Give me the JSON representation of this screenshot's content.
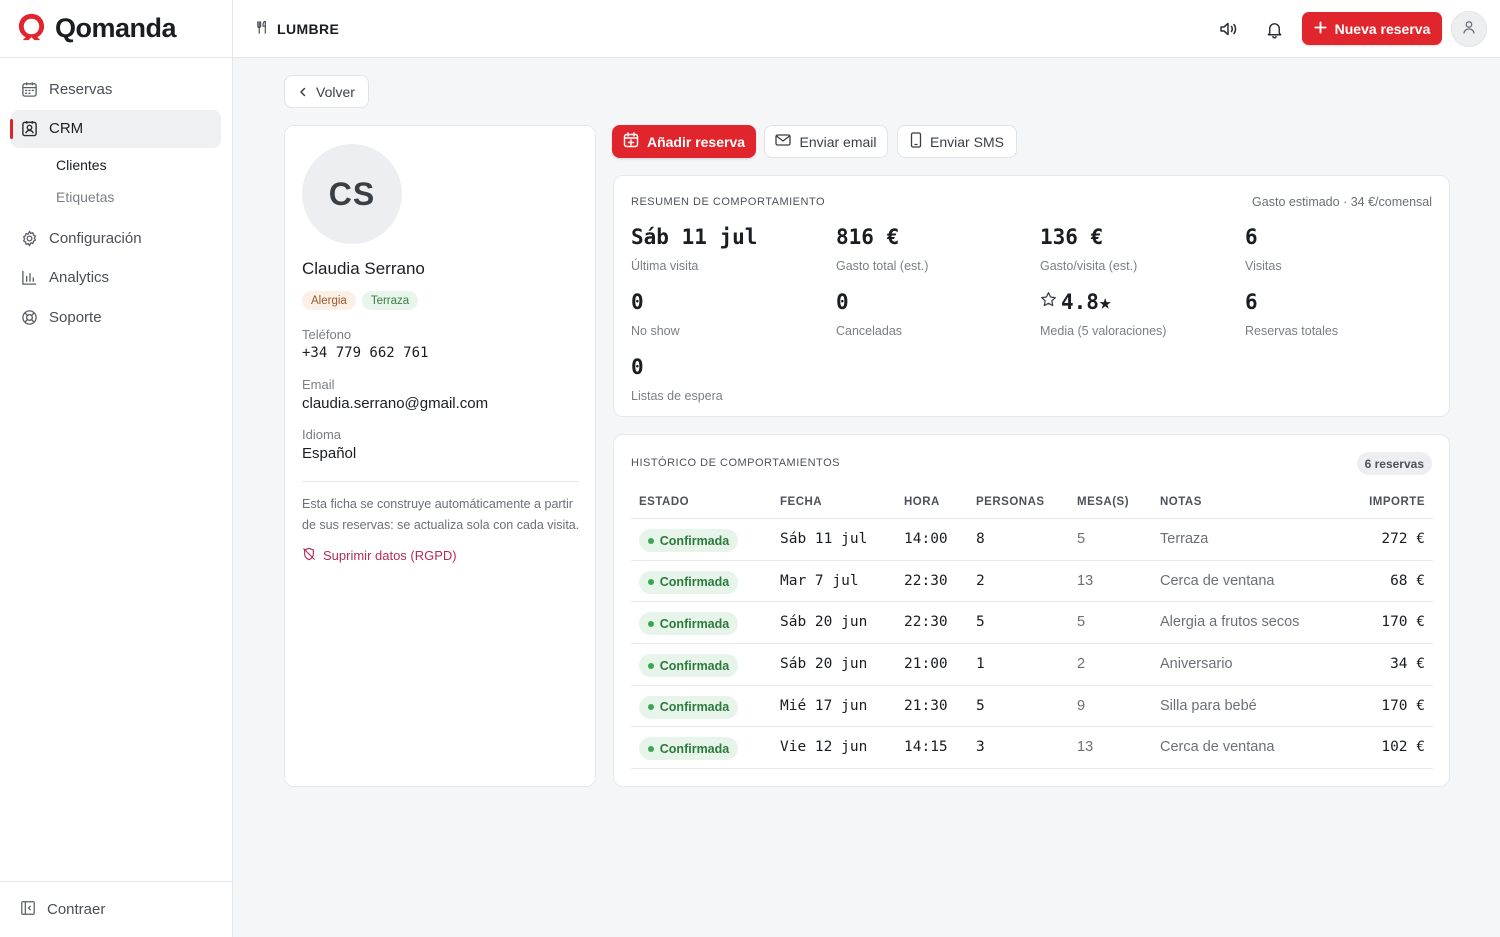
{
  "brand": {
    "name": "Qomanda"
  },
  "sidebar": {
    "items": [
      {
        "label": "Reservas",
        "icon": "calendar-icon"
      },
      {
        "label": "CRM",
        "icon": "contact-card-icon"
      },
      {
        "label": "Configuración",
        "icon": "gear-icon"
      },
      {
        "label": "Analytics",
        "icon": "bar-chart-icon"
      },
      {
        "label": "Soporte",
        "icon": "lifebuoy-icon"
      }
    ],
    "crm_sub": [
      "Clientes",
      "Etiquetas"
    ],
    "collapse_label": "Contraer"
  },
  "topbar": {
    "venue": "LUMBRE",
    "new_booking": "Nueva reserva"
  },
  "back_label": "Volver",
  "profile": {
    "initials": "CS",
    "name": "Claudia Serrano",
    "tags": [
      "Alergia",
      "Terraza"
    ],
    "phone_label": "Teléfono",
    "phone": "+34 779 662 761",
    "email_label": "Email",
    "email": "claudia.serrano@gmail.com",
    "language_label": "Idioma",
    "language": "Español",
    "note": "Esta ficha se construye automáticamente a partir de sus reservas: se actualiza sola con cada visita.",
    "gdpr": "Suprimir datos (RGPD)"
  },
  "actions": {
    "add": "Añadir reserva",
    "email": "Enviar email",
    "sms": "Enviar SMS"
  },
  "summary": {
    "title": "RESUMEN DE COMPORTAMIENTO",
    "estimate": "Gasto estimado · 34  €/comensal",
    "stats": [
      {
        "value": "Sáb 11 jul",
        "label": "Última visita"
      },
      {
        "value": "816 €",
        "label": "Gasto total (est.)"
      },
      {
        "value": "136 €",
        "label": "Gasto/visita (est.)"
      },
      {
        "value": "6",
        "label": "Visitas"
      },
      {
        "value": "0",
        "label": "No show"
      },
      {
        "value": "0",
        "label": "Canceladas"
      },
      {
        "value": "4.8★",
        "label": "Media (5 valoraciones)"
      },
      {
        "value": "6",
        "label": "Reservas totales"
      },
      {
        "value": "0",
        "label": "Listas de espera"
      }
    ]
  },
  "history": {
    "title": "HISTÓRICO DE COMPORTAMIENTOS",
    "count": "6 reservas",
    "columns": [
      "ESTADO",
      "FECHA",
      "HORA",
      "PERSONAS",
      "MESA(S)",
      "NOTAS",
      "IMPORTE"
    ],
    "rows": [
      {
        "estado": "Confirmada",
        "fecha": "Sáb 11 jul",
        "hora": "14:00",
        "personas": "8",
        "mesa": "5",
        "notas": "Terraza",
        "importe": "272 €"
      },
      {
        "estado": "Confirmada",
        "fecha": "Mar 7 jul",
        "hora": "22:30",
        "personas": "2",
        "mesa": "13",
        "notas": "Cerca de ventana",
        "importe": "68 €"
      },
      {
        "estado": "Confirmada",
        "fecha": "Sáb 20 jun",
        "hora": "22:30",
        "personas": "5",
        "mesa": "5",
        "notas": "Alergia a frutos secos",
        "importe": "170 €"
      },
      {
        "estado": "Confirmada",
        "fecha": "Sáb 20 jun",
        "hora": "21:00",
        "personas": "1",
        "mesa": "2",
        "notas": "Aniversario",
        "importe": "34 €"
      },
      {
        "estado": "Confirmada",
        "fecha": "Mié 17 jun",
        "hora": "21:30",
        "personas": "5",
        "mesa": "9",
        "notas": "Silla para bebé",
        "importe": "170 €"
      },
      {
        "estado": "Confirmada",
        "fecha": "Vie 12 jun",
        "hora": "14:15",
        "personas": "3",
        "mesa": "13",
        "notas": "Cerca de ventana",
        "importe": "102 €"
      }
    ]
  },
  "colors": {
    "accent": "#e0262c",
    "confirmed": "#2d7a3e",
    "gdpr": "#b22b5a"
  }
}
